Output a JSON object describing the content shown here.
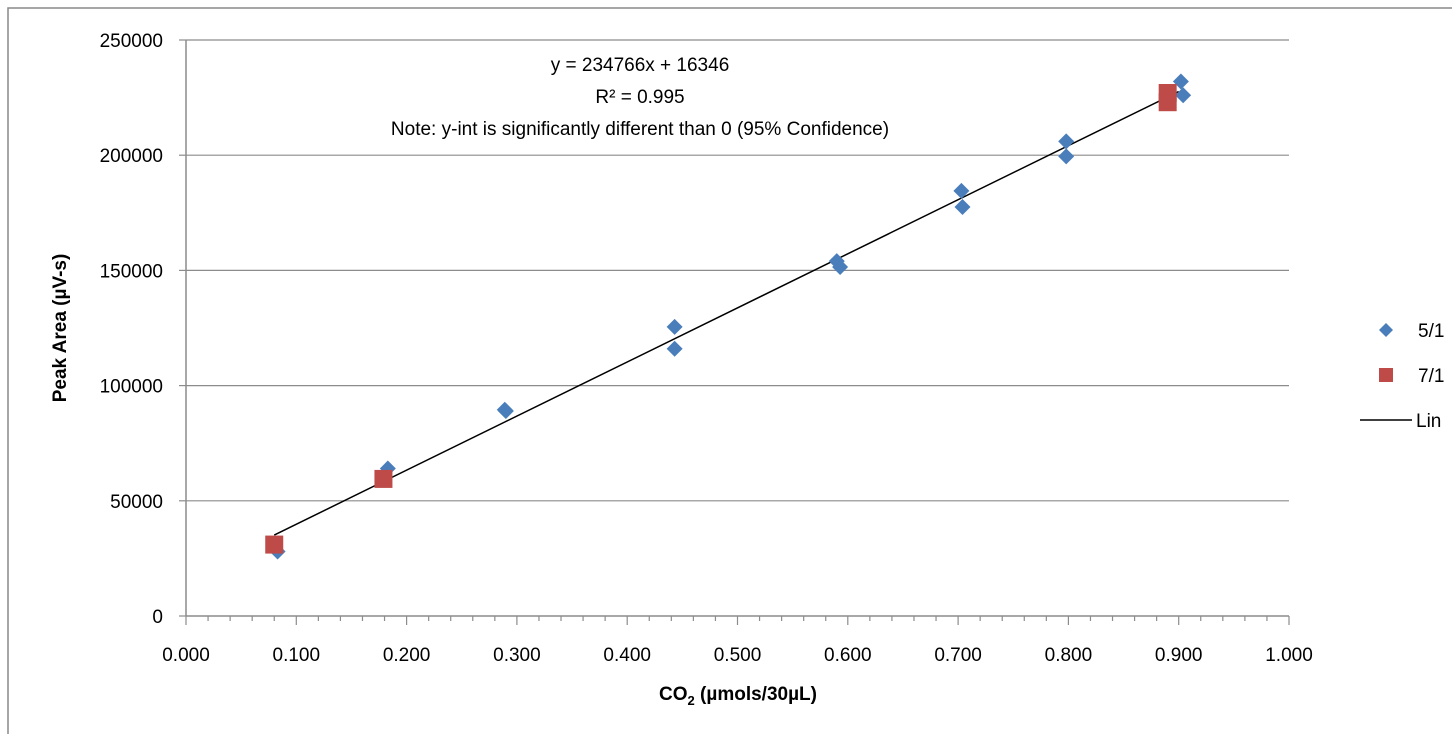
{
  "chart_data": {
    "type": "scatter",
    "title": "",
    "xlabel": {
      "main": "CO",
      "sub": "2",
      "rest": " (µmols/30µL)"
    },
    "ylabel": "Peak Area (µV-s)",
    "xlim": [
      0,
      1.0
    ],
    "ylim": [
      0,
      250000
    ],
    "x_ticks": [
      0,
      0.1,
      0.2,
      0.3,
      0.4,
      0.5,
      0.6,
      0.7,
      0.8,
      0.9,
      1.0
    ],
    "x_tick_labels": [
      "0.000",
      "0.100",
      "0.200",
      "0.300",
      "0.400",
      "0.500",
      "0.600",
      "0.700",
      "0.800",
      "0.900",
      "1.000"
    ],
    "y_ticks": [
      0,
      50000,
      100000,
      150000,
      200000,
      250000
    ],
    "y_tick_labels": [
      "0",
      "50000",
      "100000",
      "150000",
      "200000",
      "250000"
    ],
    "grid": {
      "horizontal": true,
      "vertical": false
    },
    "legend_position": "right",
    "series": [
      {
        "name": "5/1",
        "marker": "diamond",
        "color": "#4a7ebb",
        "points": [
          [
            0.083,
            28000
          ],
          [
            0.183,
            64000
          ],
          [
            0.289,
            89500
          ],
          [
            0.29,
            89000
          ],
          [
            0.443,
            125500
          ],
          [
            0.443,
            116000
          ],
          [
            0.59,
            154000
          ],
          [
            0.593,
            151500
          ],
          [
            0.703,
            184500
          ],
          [
            0.704,
            177500
          ],
          [
            0.798,
            206000
          ],
          [
            0.798,
            199500
          ],
          [
            0.902,
            232000
          ],
          [
            0.904,
            226000
          ]
        ]
      },
      {
        "name": "7/1",
        "marker": "square",
        "color": "#be4b48",
        "points": [
          [
            0.08,
            31000
          ],
          [
            0.179,
            59500
          ],
          [
            0.89,
            227000
          ],
          [
            0.89,
            223000
          ]
        ]
      }
    ],
    "trendline": {
      "name": "Lin",
      "color": "#000000",
      "slope": 234766,
      "intercept": 16346,
      "x_range": [
        0.08,
        0.9
      ]
    },
    "annotations": {
      "equation": "y = 234766x + 16346",
      "r_squared": "R² = 0.995",
      "note": "Note:  y-int is significantly different than 0 (95% Confidence)"
    }
  }
}
